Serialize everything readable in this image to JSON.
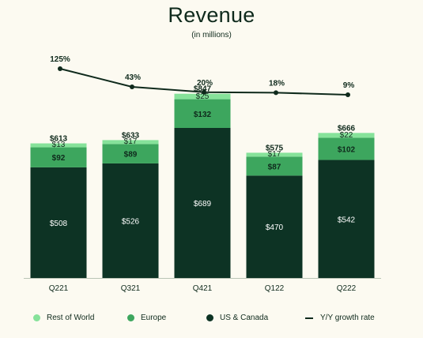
{
  "chart_data": {
    "type": "bar",
    "title": "Revenue",
    "subtitle": "(in millions)",
    "categories": [
      "Q221",
      "Q321",
      "Q421",
      "Q122",
      "Q222"
    ],
    "series": [
      {
        "name": "US & Canada",
        "values": [
          508,
          526,
          689,
          470,
          542
        ],
        "labels": [
          "$508",
          "$526",
          "$689",
          "$470",
          "$542"
        ],
        "color": "#0d3324"
      },
      {
        "name": "Europe",
        "values": [
          92,
          89,
          132,
          87,
          102
        ],
        "labels": [
          "$92",
          "$89",
          "$132",
          "$87",
          "$102"
        ],
        "color": "#3da65e"
      },
      {
        "name": "Rest of World",
        "values": [
          13,
          17,
          25,
          17,
          22
        ],
        "labels": [
          "$13",
          "$17",
          "$25",
          "$17",
          "$22"
        ],
        "color": "#86e29a"
      }
    ],
    "totals": [
      613,
      633,
      847,
      575,
      666
    ],
    "total_labels": [
      "$613",
      "$633",
      "$847",
      "$575",
      "$666"
    ],
    "growth": {
      "name": "Y/Y growth rate",
      "values": [
        125,
        43,
        20,
        18,
        9
      ],
      "labels": [
        "125%",
        "43%",
        "20%",
        "18%",
        "9%"
      ],
      "color": "#0f2a1c"
    },
    "legend": {
      "position": "bottom",
      "items": [
        {
          "label": "Rest of World",
          "color": "#86e29a",
          "marker": "dot"
        },
        {
          "label": "Europe",
          "color": "#3da65e",
          "marker": "dot"
        },
        {
          "label": "US & Canada",
          "color": "#0d3324",
          "marker": "dot"
        },
        {
          "label": "Y/Y growth rate",
          "color": "#0f2a1c",
          "marker": "line"
        }
      ]
    },
    "grid": false
  }
}
